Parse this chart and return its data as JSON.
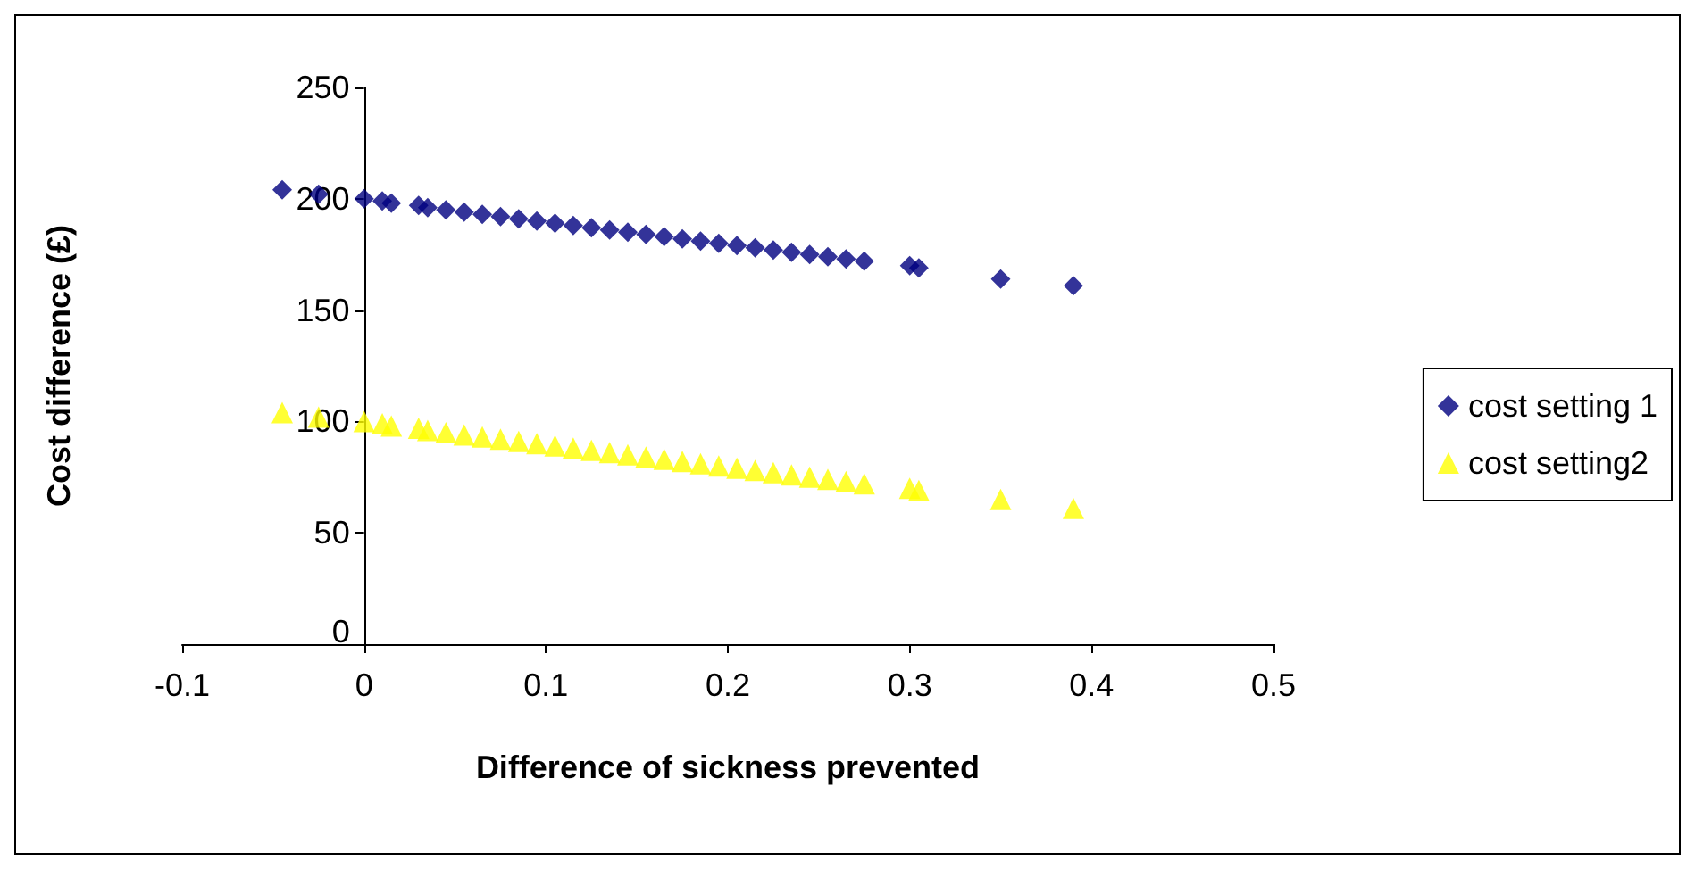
{
  "chart_data": {
    "type": "scatter",
    "xlabel": "Difference of sickness prevented",
    "ylabel": "Cost difference (£)",
    "x": [
      -0.045,
      -0.025,
      0,
      0.01,
      0.015,
      0.03,
      0.035,
      0.045,
      0.055,
      0.065,
      0.075,
      0.085,
      0.095,
      0.105,
      0.115,
      0.125,
      0.135,
      0.145,
      0.155,
      0.165,
      0.175,
      0.185,
      0.195,
      0.205,
      0.215,
      0.225,
      0.235,
      0.245,
      0.255,
      0.265,
      0.275,
      0.3,
      0.305,
      0.35,
      0.39
    ],
    "series": [
      {
        "name": "cost setting 1",
        "color": "#000080",
        "marker": "diamond",
        "values": [
          204,
          202,
          200,
          199,
          198,
          197,
          196,
          195,
          194,
          193,
          192,
          191,
          190,
          189,
          188,
          187,
          186,
          185,
          184,
          183,
          182,
          181,
          180,
          179,
          178,
          177,
          176,
          175,
          174,
          173,
          172,
          170,
          169,
          164,
          161
        ]
      },
      {
        "name": "cost setting2",
        "color": "#ffff00",
        "marker": "triangle",
        "values": [
          104,
          102,
          100,
          99,
          98,
          97,
          96,
          95,
          94,
          93,
          92,
          91,
          90,
          89,
          88,
          87,
          86,
          85,
          84,
          83,
          82,
          81,
          80,
          79,
          78,
          77,
          76,
          75,
          74,
          73,
          72,
          70,
          69,
          65,
          61
        ]
      }
    ],
    "xlim": [
      -0.1,
      0.5
    ],
    "xticks": [
      -0.1,
      0,
      0.1,
      0.2,
      0.3,
      0.4,
      0.5
    ],
    "ylim": [
      0,
      250
    ],
    "yticks": [
      0,
      50,
      100,
      150,
      200,
      250
    ],
    "grid": false,
    "legend": "right"
  }
}
